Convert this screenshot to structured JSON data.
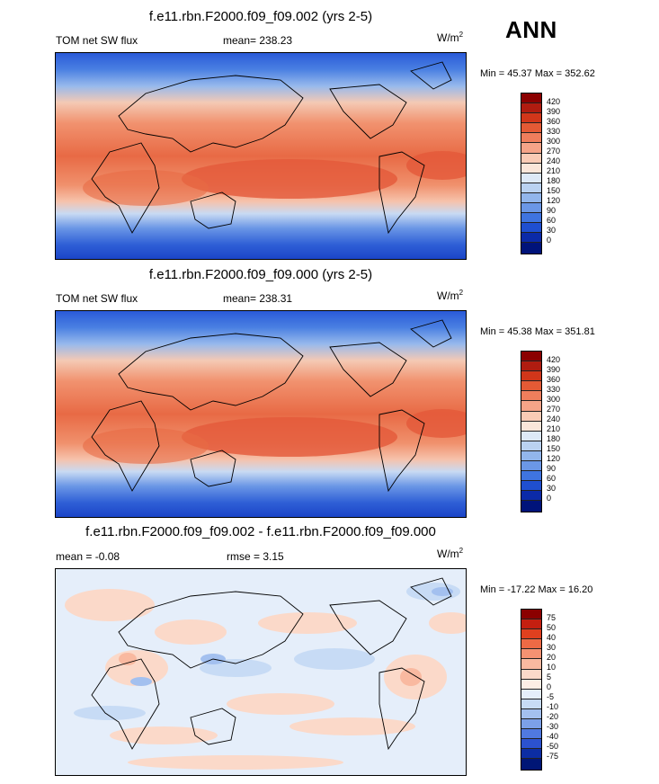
{
  "season": "ANN",
  "units_base": "W/m",
  "units_exp": "2",
  "panels": [
    {
      "title": "f.e11.rbn.F2000.f09_f09.002 (yrs 2-5)",
      "left": "TOM net SW flux",
      "mean": "mean= 238.23",
      "minmax": "Min =  45.37 Max = 352.62",
      "colorbar": [
        "420",
        "390",
        "360",
        "330",
        "300",
        "270",
        "240",
        "210",
        "180",
        "150",
        "120",
        "90",
        "60",
        "30",
        "0"
      ]
    },
    {
      "title": "f.e11.rbn.F2000.f09_f09.000 (yrs 2-5)",
      "left": "TOM net SW flux",
      "mean": "mean= 238.31",
      "minmax": "Min =  45.38 Max = 351.81",
      "colorbar": [
        "420",
        "390",
        "360",
        "330",
        "300",
        "270",
        "240",
        "210",
        "180",
        "150",
        "120",
        "90",
        "60",
        "30",
        "0"
      ]
    },
    {
      "title": "f.e11.rbn.F2000.f09_f09.002 - f.e11.rbn.F2000.f09_f09.000",
      "left": "mean =  -0.08",
      "mean": "rmse =   3.15",
      "minmax": "Min = -17.22 Max =  16.20",
      "colorbar": [
        "75",
        "50",
        "40",
        "30",
        "20",
        "10",
        "5",
        "0",
        "-5",
        "-10",
        "-20",
        "-30",
        "-40",
        "-50",
        "-75"
      ]
    }
  ],
  "colors": {
    "abs_scale": [
      "#8b0000",
      "#b01c10",
      "#d1361a",
      "#e45a35",
      "#ef7e5c",
      "#f5a488",
      "#f9cbb5",
      "#fae6d9",
      "#dde9f7",
      "#bad2f1",
      "#92b6ec",
      "#6b97e6",
      "#3f74e0",
      "#1f4fd0",
      "#0b2aa8",
      "#00137a"
    ],
    "diff_scale": [
      "#8b0000",
      "#c41f10",
      "#e0401f",
      "#ee6a45",
      "#f59272",
      "#f9b9a0",
      "#fbd9c9",
      "#fdeee5",
      "#e5eefa",
      "#c7dbf5",
      "#a3c0ef",
      "#7ca0e8",
      "#5079e0",
      "#2c52cf",
      "#0c2da3",
      "#001676"
    ]
  },
  "chart_data": [
    {
      "type": "heatmap",
      "title": "f.e11.rbn.F2000.f09_f09.002 (yrs 2-5)",
      "variable": "TOM net SW flux",
      "units": "W/m2",
      "mean": 238.23,
      "min": 45.37,
      "max": 352.62,
      "levels": [
        0,
        30,
        60,
        90,
        120,
        150,
        180,
        210,
        240,
        270,
        300,
        330,
        360,
        390,
        420
      ]
    },
    {
      "type": "heatmap",
      "title": "f.e11.rbn.F2000.f09_f09.000 (yrs 2-5)",
      "variable": "TOM net SW flux",
      "units": "W/m2",
      "mean": 238.31,
      "min": 45.38,
      "max": 351.81,
      "levels": [
        0,
        30,
        60,
        90,
        120,
        150,
        180,
        210,
        240,
        270,
        300,
        330,
        360,
        390,
        420
      ]
    },
    {
      "type": "heatmap",
      "title": "f.e11.rbn.F2000.f09_f09.002 - f.e11.rbn.F2000.f09_f09.000",
      "units": "W/m2",
      "mean": -0.08,
      "rmse": 3.15,
      "min": -17.22,
      "max": 16.2,
      "levels": [
        -75,
        -50,
        -40,
        -30,
        -20,
        -10,
        -5,
        0,
        5,
        10,
        20,
        30,
        40,
        50,
        75
      ]
    }
  ]
}
